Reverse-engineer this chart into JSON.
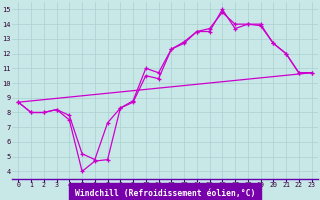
{
  "xlabel": "Windchill (Refroidissement éolien,°C)",
  "background_color": "#c8e8e8",
  "grid_color": "#aad0d0",
  "line_color": "#cc00cc",
  "axis_label_bg": "#8800aa",
  "xlim": [
    -0.5,
    23.5
  ],
  "ylim": [
    3.5,
    15.5
  ],
  "xticks": [
    0,
    1,
    2,
    3,
    4,
    5,
    6,
    7,
    8,
    9,
    10,
    11,
    12,
    13,
    14,
    15,
    16,
    17,
    18,
    19,
    20,
    21,
    22,
    23
  ],
  "yticks": [
    4,
    5,
    6,
    7,
    8,
    9,
    10,
    11,
    12,
    13,
    14,
    15
  ],
  "line1_x": [
    0,
    1,
    2,
    3,
    4,
    5,
    6,
    7,
    8,
    9,
    10,
    11,
    12,
    13,
    14,
    15,
    16,
    17,
    18,
    19,
    20,
    21,
    22,
    23
  ],
  "line1_y": [
    8.7,
    8.0,
    8.0,
    8.2,
    7.5,
    4.0,
    4.7,
    4.8,
    8.3,
    8.7,
    10.5,
    10.3,
    12.3,
    12.7,
    13.5,
    13.5,
    15.0,
    13.7,
    14.0,
    13.9,
    12.7,
    12.0,
    10.7,
    10.7
  ],
  "line2_x": [
    0,
    1,
    2,
    3,
    4,
    5,
    6,
    7,
    8,
    9,
    10,
    11,
    12,
    13,
    14,
    15,
    16,
    17,
    18,
    19,
    20,
    21,
    22,
    23
  ],
  "line2_y": [
    8.7,
    8.0,
    8.0,
    8.2,
    7.8,
    5.2,
    4.8,
    7.3,
    8.3,
    8.8,
    11.0,
    10.7,
    12.3,
    12.8,
    13.5,
    13.7,
    14.8,
    14.0,
    14.0,
    14.0,
    12.7,
    12.0,
    10.7,
    10.7
  ],
  "line3_x": [
    0,
    23
  ],
  "line3_y": [
    8.7,
    10.7
  ]
}
